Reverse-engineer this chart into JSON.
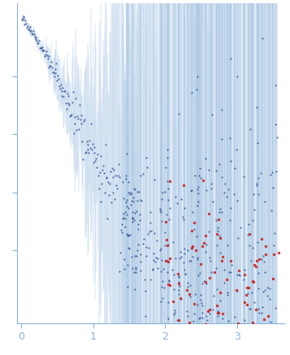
{
  "xlim": [
    -0.05,
    3.65
  ],
  "ylim": [
    -0.05,
    1.05
  ],
  "x_ticks": [
    0,
    1,
    2,
    3
  ],
  "bg_color": "#ffffff",
  "dot_color_main": "#3a5a9a",
  "dot_color_outlier": "#cc2222",
  "error_band_color": "#c5d8ef",
  "error_bar_color": "#8ab4d8",
  "spine_color": "#8ab4d8",
  "tick_color": "#8ab4d8",
  "tick_label_color": "#8ab4d8",
  "seed": 17
}
